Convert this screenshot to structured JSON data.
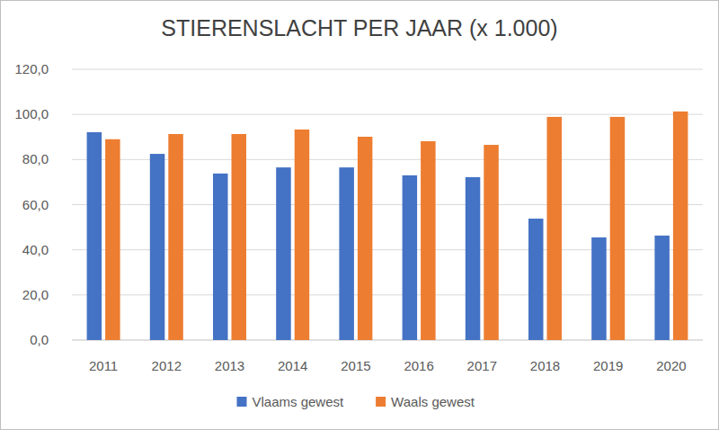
{
  "chart_data": {
    "type": "bar",
    "title": "STIERENSLACHT PER JAAR (x 1.000)",
    "categories": [
      "2011",
      "2012",
      "2013",
      "2014",
      "2015",
      "2016",
      "2017",
      "2018",
      "2019",
      "2020"
    ],
    "series": [
      {
        "name": "Vlaams gewest",
        "color": "#4472c4",
        "values": [
          92.1,
          82.5,
          73.8,
          76.5,
          76.5,
          73.0,
          72.2,
          53.8,
          45.5,
          46.3
        ]
      },
      {
        "name": "Waals gewest",
        "color": "#ed7d31",
        "values": [
          89.0,
          91.3,
          91.3,
          93.3,
          90.1,
          88.1,
          86.5,
          98.9,
          98.9,
          101.3
        ]
      }
    ],
    "ylim": [
      0,
      120
    ],
    "yticks": [
      {
        "value": 0,
        "label": "0,0"
      },
      {
        "value": 20,
        "label": "20,0"
      },
      {
        "value": 40,
        "label": "40,0"
      },
      {
        "value": 60,
        "label": "60,0"
      },
      {
        "value": 80,
        "label": "80,0"
      },
      {
        "value": 100,
        "label": "100,0"
      },
      {
        "value": 120,
        "label": "120,0"
      }
    ],
    "grid": true,
    "legend": "bottom"
  }
}
